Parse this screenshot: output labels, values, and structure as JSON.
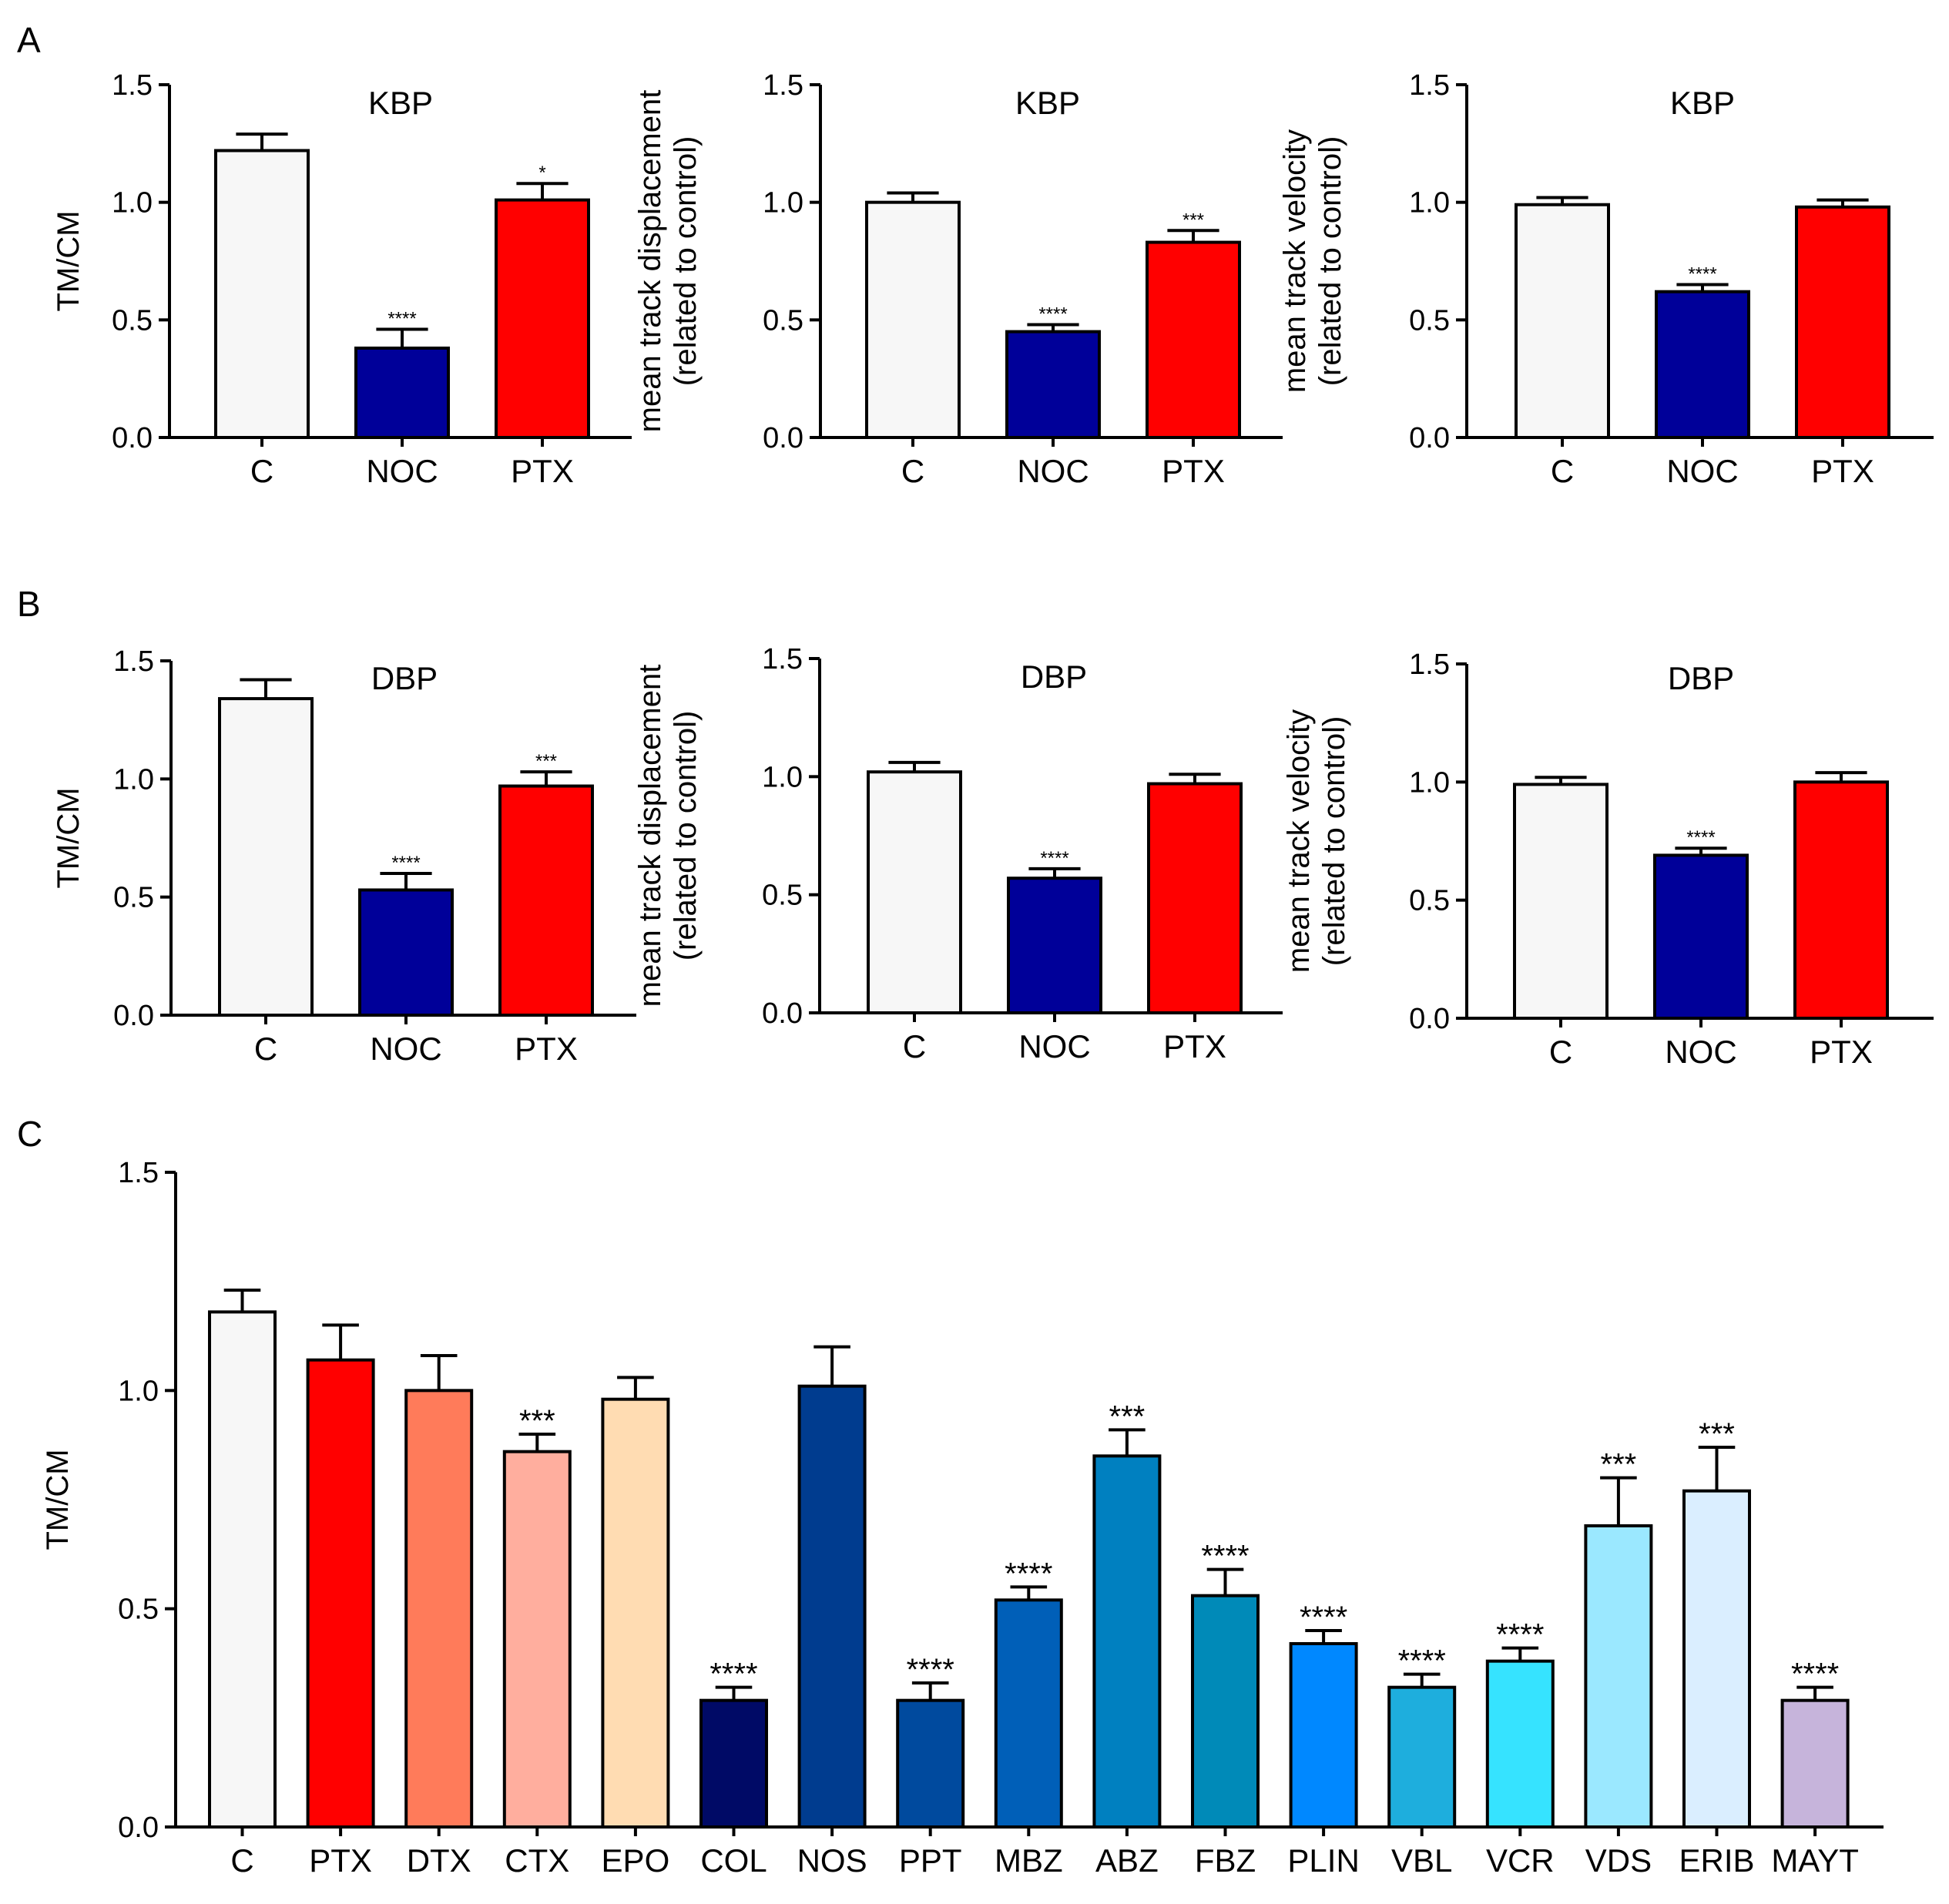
{
  "figure": {
    "panel_letters": [
      "A",
      "B",
      "C"
    ]
  },
  "colors": {
    "C": "#f7f7f7",
    "PTX": "#ff0000",
    "NOC": "#000099",
    "DTX": "#ff7b5a",
    "CTX": "#ffae9e",
    "EPO": "#ffdcb2",
    "COL": "#000a66",
    "NOS": "#003c8f",
    "PPT": "#004a9e",
    "MBZ": "#005fb8",
    "ABZ": "#0080c0",
    "FBZ": "#008ab8",
    "PLIN": "#0088ff",
    "VBL": "#1eaedd",
    "VCR": "#36e3ff",
    "VDS": "#9be8ff",
    "ERIB": "#daeeff",
    "MAYT": "#c6b4db"
  },
  "chart_data": [
    {
      "id": "A1",
      "panel": "A",
      "type": "bar",
      "title": "KBP",
      "ylabel": [
        "TM/CM"
      ],
      "ylim": [
        0,
        1.5
      ],
      "yticks": [
        "0.0",
        "0.5",
        "1.0",
        "1.5"
      ],
      "categories": [
        "C",
        "NOC",
        "PTX"
      ],
      "values": [
        1.22,
        0.38,
        1.01
      ],
      "errors": [
        0.07,
        0.08,
        0.07
      ],
      "significance": [
        "",
        "****",
        "*"
      ]
    },
    {
      "id": "A2",
      "panel": "A",
      "type": "bar",
      "title": "KBP",
      "ylabel": [
        "mean track displacement",
        "(related to control)"
      ],
      "ylim": [
        0,
        1.5
      ],
      "yticks": [
        "0.0",
        "0.5",
        "1.0",
        "1.5"
      ],
      "categories": [
        "C",
        "NOC",
        "PTX"
      ],
      "values": [
        1.0,
        0.45,
        0.83
      ],
      "errors": [
        0.04,
        0.03,
        0.05
      ],
      "significance": [
        "",
        "****",
        "***"
      ]
    },
    {
      "id": "A3",
      "panel": "A",
      "type": "bar",
      "title": "KBP",
      "ylabel": [
        "mean track velocity",
        "(related to control)"
      ],
      "ylim": [
        0,
        1.5
      ],
      "yticks": [
        "0.0",
        "0.5",
        "1.0",
        "1.5"
      ],
      "categories": [
        "C",
        "NOC",
        "PTX"
      ],
      "values": [
        0.99,
        0.62,
        0.98
      ],
      "errors": [
        0.03,
        0.03,
        0.03
      ],
      "significance": [
        "",
        "****",
        ""
      ]
    },
    {
      "id": "B1",
      "panel": "B",
      "type": "bar",
      "title": "DBP",
      "ylabel": [
        "TM/CM"
      ],
      "ylim": [
        0,
        1.5
      ],
      "yticks": [
        "0.0",
        "0.5",
        "1.0",
        "1.5"
      ],
      "categories": [
        "C",
        "NOC",
        "PTX"
      ],
      "values": [
        1.34,
        0.53,
        0.97
      ],
      "errors": [
        0.08,
        0.07,
        0.06
      ],
      "significance": [
        "",
        "****",
        "***"
      ]
    },
    {
      "id": "B2",
      "panel": "B",
      "type": "bar",
      "title": "DBP",
      "ylabel": [
        "mean track displacement",
        "(related to control)"
      ],
      "ylim": [
        0,
        1.5
      ],
      "yticks": [
        "0.0",
        "0.5",
        "1.0",
        "1.5"
      ],
      "categories": [
        "C",
        "NOC",
        "PTX"
      ],
      "values": [
        1.02,
        0.57,
        0.97
      ],
      "errors": [
        0.04,
        0.04,
        0.04
      ],
      "significance": [
        "",
        "****",
        ""
      ]
    },
    {
      "id": "B3",
      "panel": "B",
      "type": "bar",
      "title": "DBP",
      "ylabel": [
        "mean track velocity",
        "(related to control)"
      ],
      "ylim": [
        0,
        1.5
      ],
      "yticks": [
        "0.0",
        "0.5",
        "1.0",
        "1.5"
      ],
      "categories": [
        "C",
        "NOC",
        "PTX"
      ],
      "values": [
        0.99,
        0.69,
        1.0
      ],
      "errors": [
        0.03,
        0.03,
        0.04
      ],
      "significance": [
        "",
        "****",
        ""
      ]
    },
    {
      "id": "C1",
      "panel": "C",
      "type": "bar",
      "title": "",
      "ylabel": [
        "TM/CM"
      ],
      "ylim": [
        0,
        1.5
      ],
      "yticks": [
        "0.0",
        "0.5",
        "1.0",
        "1.5"
      ],
      "categories": [
        "C",
        "PTX",
        "DTX",
        "CTX",
        "EPO",
        "COL",
        "NOS",
        "PPT",
        "MBZ",
        "ABZ",
        "FBZ",
        "PLIN",
        "VBL",
        "VCR",
        "VDS",
        "ERIB",
        "MAYT"
      ],
      "values": [
        1.18,
        1.07,
        1.0,
        0.86,
        0.98,
        0.29,
        1.01,
        0.29,
        0.52,
        0.85,
        0.53,
        0.42,
        0.32,
        0.38,
        0.69,
        0.77,
        0.29
      ],
      "errors": [
        0.05,
        0.08,
        0.08,
        0.04,
        0.05,
        0.03,
        0.09,
        0.04,
        0.03,
        0.06,
        0.06,
        0.03,
        0.03,
        0.03,
        0.11,
        0.1,
        0.03
      ],
      "significance": [
        "",
        "",
        "",
        "***",
        "",
        "****",
        "",
        "****",
        "****",
        "***",
        "****",
        "****",
        "****",
        "****",
        "***",
        "***",
        "****"
      ]
    }
  ]
}
